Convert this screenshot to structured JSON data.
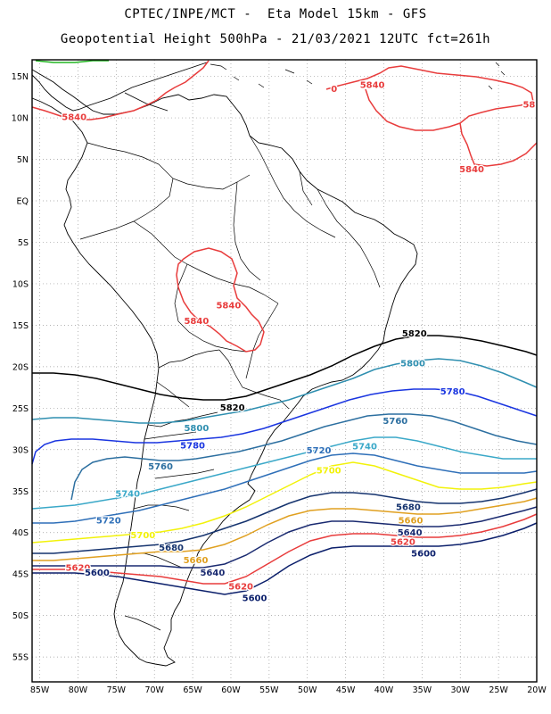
{
  "header": {
    "line1": "CPTEC/INPE/MCT -  Eta Model 15km - GFS",
    "line2": "Geopotential Height 500hPa - 21/03/2021 12UTC fct=261h"
  },
  "axes": {
    "lat_labels": [
      "15N",
      "10N",
      "5N",
      "EQ",
      "5S",
      "10S",
      "15S",
      "20S",
      "25S",
      "30S",
      "35S",
      "40S",
      "45S",
      "50S",
      "55S"
    ],
    "lon_labels": [
      "85W",
      "80W",
      "75W",
      "70W",
      "65W",
      "60W",
      "55W",
      "50W",
      "45W",
      "40W",
      "35W",
      "30W",
      "25W",
      "20W"
    ],
    "lat_range": [
      17,
      -58
    ],
    "lon_range": [
      -86,
      -20
    ],
    "grid": "dotted"
  },
  "contours": [
    {
      "level": "5840",
      "color": "#e83c3c"
    },
    {
      "level": "5820",
      "color": "#000000"
    },
    {
      "level": "5800",
      "color": "#2f8fb0"
    },
    {
      "level": "5780",
      "color": "#1a35e0"
    },
    {
      "level": "5760",
      "color": "#2c6fa0"
    },
    {
      "level": "5740",
      "color": "#3aa8c8"
    },
    {
      "level": "5720",
      "color": "#2e6fb8"
    },
    {
      "level": "5700",
      "color": "#f2f20a"
    },
    {
      "level": "5680",
      "color": "#15336e"
    },
    {
      "level": "5660",
      "color": "#e0a020"
    },
    {
      "level": "5640",
      "color": "#1a2a70"
    },
    {
      "level": "5620",
      "color": "#e83c3c"
    },
    {
      "level": "5600",
      "color": "#0b1f6b"
    }
  ],
  "contour_labels": [
    {
      "text": "5840",
      "level": "5840",
      "lon": -80.5,
      "lat": 10.1
    },
    {
      "text": "5840",
      "level": "5840",
      "lon": -64.5,
      "lat": -14.5
    },
    {
      "text": "5840",
      "level": "5840",
      "lon": -60.3,
      "lat": -12.6
    },
    {
      "text": "5840",
      "level": "5840",
      "lon": -41.5,
      "lat": 14.0
    },
    {
      "text": "5840",
      "level": "5840",
      "lon": -28.5,
      "lat": 3.8
    },
    {
      "text": "58",
      "level": "5840",
      "lon": -21.0,
      "lat": 11.6
    },
    {
      "text": "0",
      "level": "5840",
      "lon": -46.5,
      "lat": 13.5
    },
    {
      "text": "5820",
      "level": "5820",
      "lon": -59.8,
      "lat": -24.9
    },
    {
      "text": "5820",
      "level": "5820",
      "lon": -36.0,
      "lat": -16.0
    },
    {
      "text": "5800",
      "level": "5800",
      "lon": -64.5,
      "lat": -27.4
    },
    {
      "text": "5800",
      "level": "5800",
      "lon": -36.2,
      "lat": -19.6
    },
    {
      "text": "5780",
      "level": "5780",
      "lon": -65.0,
      "lat": -29.5
    },
    {
      "text": "5780",
      "level": "5780",
      "lon": -31.0,
      "lat": -23.0
    },
    {
      "text": "5760",
      "level": "5760",
      "lon": -69.2,
      "lat": -32.0
    },
    {
      "text": "5760",
      "level": "5760",
      "lon": -38.5,
      "lat": -26.5
    },
    {
      "text": "5740",
      "level": "5740",
      "lon": -73.5,
      "lat": -35.3
    },
    {
      "text": "5740",
      "level": "5740",
      "lon": -42.5,
      "lat": -29.6
    },
    {
      "text": "5720",
      "level": "5720",
      "lon": -76.0,
      "lat": -38.5
    },
    {
      "text": "5720",
      "level": "5720",
      "lon": -48.5,
      "lat": -30.1
    },
    {
      "text": "5700",
      "level": "5700",
      "lon": -71.5,
      "lat": -40.3
    },
    {
      "text": "5700",
      "level": "5700",
      "lon": -47.2,
      "lat": -32.5
    },
    {
      "text": "5680",
      "level": "5680",
      "lon": -67.8,
      "lat": -41.8
    },
    {
      "text": "5680",
      "level": "5680",
      "lon": -36.8,
      "lat": -36.9
    },
    {
      "text": "5660",
      "level": "5660",
      "lon": -64.6,
      "lat": -43.3
    },
    {
      "text": "5660",
      "level": "5660",
      "lon": -36.5,
      "lat": -38.5
    },
    {
      "text": "5640",
      "level": "5640",
      "lon": -62.4,
      "lat": -44.8
    },
    {
      "text": "5640",
      "level": "5640",
      "lon": -36.6,
      "lat": -40.0
    },
    {
      "text": "5620",
      "level": "5620",
      "lon": -80.0,
      "lat": -44.2
    },
    {
      "text": "5620",
      "level": "5620",
      "lon": -58.7,
      "lat": -46.5
    },
    {
      "text": "5620",
      "level": "5620",
      "lon": -37.5,
      "lat": -41.1
    },
    {
      "text": "5600",
      "level": "5600",
      "lon": -77.5,
      "lat": -44.8
    },
    {
      "text": "5600",
      "level": "5600",
      "lon": -56.9,
      "lat": -47.9
    },
    {
      "text": "5600",
      "level": "5600",
      "lon": -34.8,
      "lat": -42.5
    }
  ]
}
